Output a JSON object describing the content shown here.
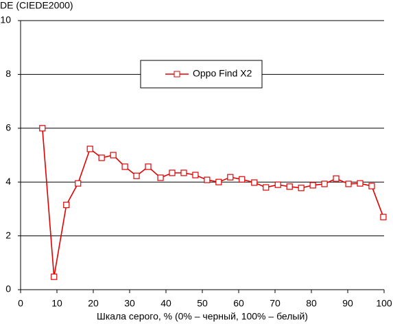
{
  "chart_data": {
    "type": "line",
    "title": "DE (CIEDE2000)",
    "x_label": "Шкала серого, % (0% – черный, 100% – белый)",
    "xlim": [
      0,
      100
    ],
    "xticks": [
      0,
      10,
      20,
      30,
      40,
      50,
      60,
      70,
      80,
      90,
      100
    ],
    "ylim": [
      0,
      10
    ],
    "yticks": [
      0,
      2,
      4,
      6,
      8,
      10
    ],
    "grid": true,
    "legend": "top",
    "x": [
      6.0,
      9.2,
      12.6,
      15.8,
      19.1,
      22.3,
      25.5,
      28.7,
      31.9,
      35.1,
      38.5,
      41.7,
      44.9,
      48.1,
      51.3,
      54.5,
      57.7,
      60.9,
      64.3,
      67.5,
      70.8,
      74.0,
      77.2,
      80.4,
      83.6,
      86.8,
      90.2,
      93.4,
      96.6,
      99.8
    ],
    "series": [
      {
        "name": "Oppo Find X2",
        "color": "#e00000",
        "values": [
          6.0,
          0.48,
          3.15,
          3.95,
          5.23,
          4.9,
          5.0,
          4.57,
          4.23,
          4.57,
          4.16,
          4.34,
          4.34,
          4.26,
          4.08,
          4.0,
          4.18,
          4.1,
          3.98,
          3.8,
          3.9,
          3.83,
          3.78,
          3.88,
          3.93,
          4.13,
          3.93,
          3.95,
          3.85,
          2.7
        ]
      }
    ]
  }
}
